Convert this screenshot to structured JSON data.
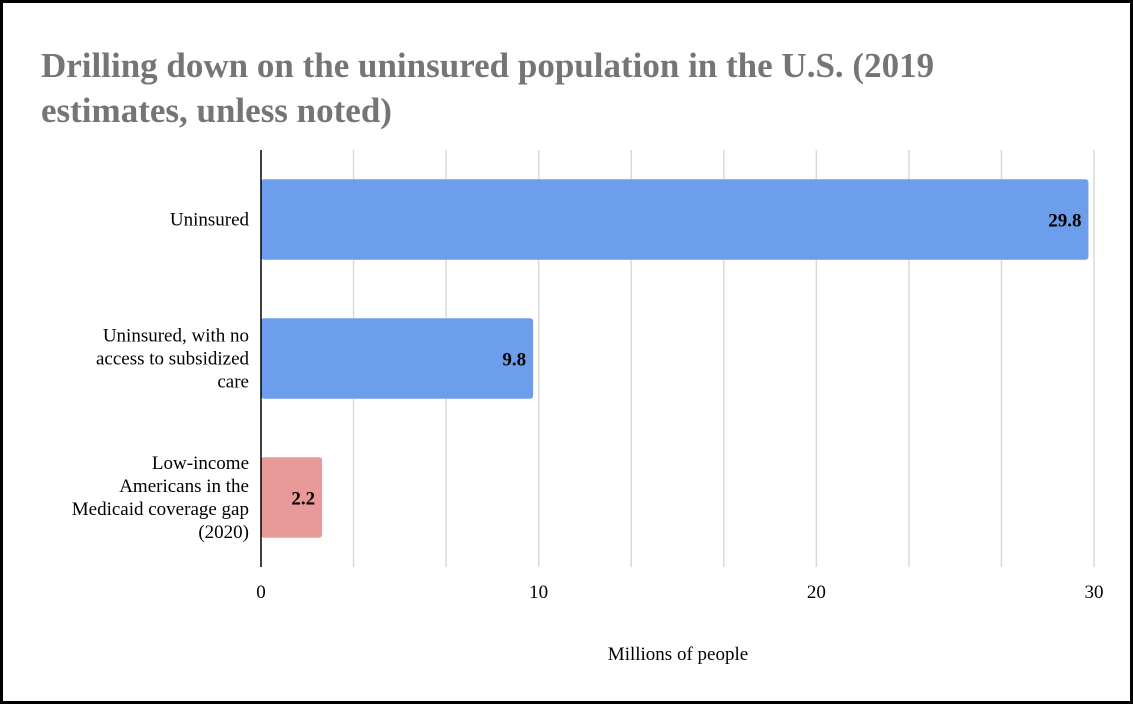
{
  "chart_data": {
    "type": "bar",
    "orientation": "horizontal",
    "title": "Drilling down on the uninsured population in the U.S. (2019 estimates, unless noted)",
    "xlabel": "Millions of people",
    "ylabel": "",
    "xlim": [
      0,
      30
    ],
    "major_ticks": [
      0,
      10,
      20,
      30
    ],
    "minor_gridlines_per_major": 3,
    "grid": true,
    "categories": [
      "Uninsured",
      "Uninsured, with no access to subsidized care",
      "Low-income Americans in the Medicaid coverage gap (2020)"
    ],
    "category_lines": [
      [
        "Uninsured"
      ],
      [
        "Uninsured, with no",
        "access to subsidized",
        "care"
      ],
      [
        "Low-income",
        "Americans in the",
        "Medicaid coverage gap",
        "(2020)"
      ]
    ],
    "values": [
      29.8,
      9.8,
      2.2
    ],
    "value_labels": [
      "29.8",
      "9.8",
      "2.2"
    ],
    "colors": [
      "#6d9eeb",
      "#6d9eeb",
      "#ea9999"
    ],
    "title_color": "#757575",
    "gridline_color": "#d9d9d9"
  }
}
